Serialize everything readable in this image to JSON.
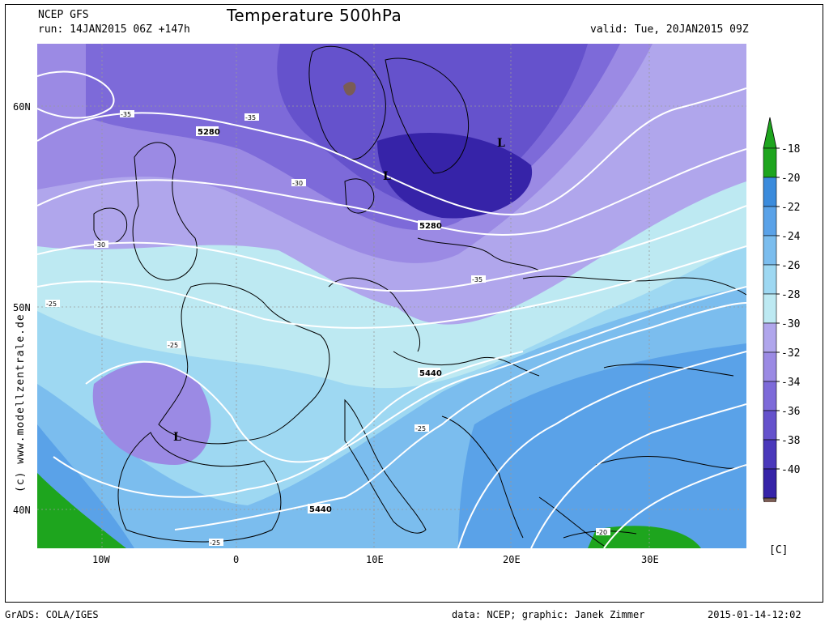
{
  "header": {
    "model": "NCEP GFS",
    "run": "run: 14JAN2015 06Z +147h",
    "title": "Temperature 500hPa",
    "valid": "valid: Tue, 20JAN2015 09Z"
  },
  "map": {
    "lat_labels": [
      "60N",
      "50N",
      "40N"
    ],
    "lon_labels": [
      "10W",
      "0",
      "10E",
      "20E",
      "30E"
    ],
    "contour_labels": [
      "5280",
      "5280",
      "5440",
      "5440",
      "-35",
      "-35",
      "-35",
      "-30",
      "-30",
      "-25",
      "-25",
      "-25",
      "-25",
      "-20"
    ],
    "pressure_marks": [
      "L",
      "L",
      "L"
    ],
    "watermark": "(c) www.modellzentrale.de"
  },
  "legend": {
    "ticks": [
      "-18",
      "-20",
      "-22",
      "-24",
      "-26",
      "-28",
      "-30",
      "-32",
      "-34",
      "-36",
      "-38",
      "-40"
    ],
    "unit": "[C]",
    "colors": [
      "#1ea51e",
      "#3b8bdc",
      "#5aa2e8",
      "#7bbdee",
      "#9ed8f2",
      "#bde9f2",
      "#b0a6ec",
      "#9b8ae4",
      "#7d6ad9",
      "#6552cc",
      "#4a38bb",
      "#3623a8"
    ],
    "top_color": "#1ea51e",
    "bottom_color": "#7a5c55"
  },
  "footer": {
    "left": "GrADS: COLA/IGES",
    "center": "data: NCEP; graphic: Janek Zimmer",
    "right": "2015-01-14-12:02"
  }
}
